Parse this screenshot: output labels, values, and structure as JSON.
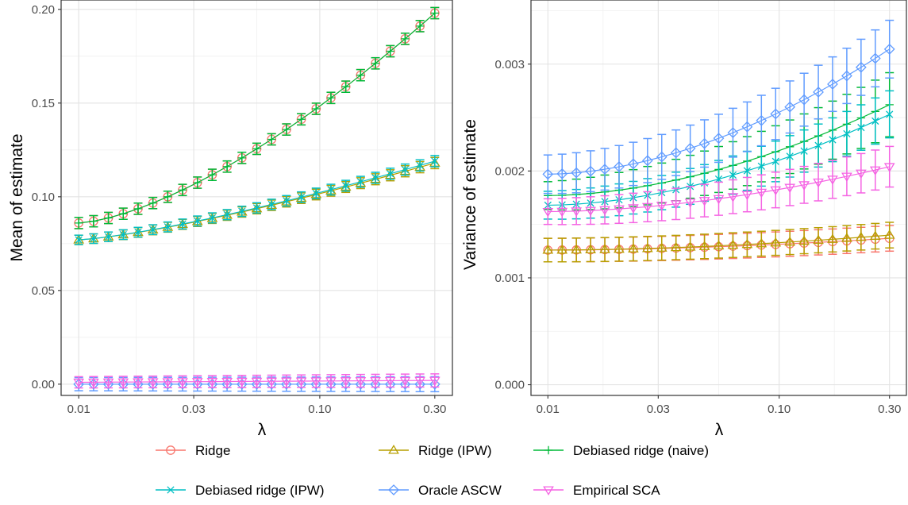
{
  "colors": {
    "ridge": "#F8766D",
    "ridge_ipw": "#B79F00",
    "debiased_naive": "#00BA38",
    "debiased_ipw": "#00BFC4",
    "oracle_ascw": "#619CFF",
    "empirical_sca": "#F564E3"
  },
  "legend": [
    {
      "label": "Ridge",
      "color": "#F8766D",
      "shape": "circle"
    },
    {
      "label": "Ridge (IPW)",
      "color": "#B79F00",
      "shape": "triangle"
    },
    {
      "label": "Debiased ridge (naive)",
      "color": "#00BA38",
      "shape": "plus"
    },
    {
      "label": "Debiased ridge (IPW)",
      "color": "#00BFC4",
      "shape": "cross"
    },
    {
      "label": "Oracle ASCW",
      "color": "#619CFF",
      "shape": "diamond"
    },
    {
      "label": "Empirical SCA",
      "color": "#F564E3",
      "shape": "triangle-down"
    }
  ],
  "chart_data": [
    {
      "type": "line",
      "title": "",
      "xlabel": "λ",
      "ylabel": "Mean of estimate",
      "x_scale": "log",
      "x_range": [
        0.01,
        0.3
      ],
      "x_ticks": [
        0.01,
        0.03,
        0.1,
        0.3
      ],
      "x_tick_labels": [
        "0.01",
        "0.03",
        "0.10",
        "0.30"
      ],
      "y_ticks": [
        0.0,
        0.05,
        0.1,
        0.15,
        0.2
      ],
      "y_tick_labels": [
        "0.00",
        "0.05",
        "0.10",
        "0.15",
        "0.20"
      ],
      "ylim": [
        -0.006,
        0.205
      ],
      "grid": true,
      "series": [
        {
          "name": "Ridge",
          "start": 0.086,
          "end": 0.198,
          "curve": 1.5,
          "err_start": 0.003,
          "err_end": 0.003
        },
        {
          "name": "Ridge (IPW)",
          "start": 0.077,
          "end": 0.118,
          "curve": 1.3,
          "err_start": 0.0025,
          "err_end": 0.003
        },
        {
          "name": "Debiased ridge (naive)",
          "start": 0.086,
          "end": 0.198,
          "curve": 1.5,
          "err_start": 0.003,
          "err_end": 0.003
        },
        {
          "name": "Debiased ridge (IPW)",
          "start": 0.077,
          "end": 0.119,
          "curve": 1.3,
          "err_start": 0.0025,
          "err_end": 0.003
        },
        {
          "name": "Oracle ASCW",
          "start": 0.0,
          "end": 0.0,
          "curve": 1,
          "err_start": 0.0035,
          "err_end": 0.004
        },
        {
          "name": "Empirical SCA",
          "start": 0.001,
          "end": 0.002,
          "curve": 1,
          "err_start": 0.003,
          "err_end": 0.0035
        }
      ]
    },
    {
      "type": "line",
      "title": "",
      "xlabel": "λ",
      "ylabel": "Variance of estimate",
      "x_scale": "log",
      "x_range": [
        0.01,
        0.3
      ],
      "x_ticks": [
        0.01,
        0.03,
        0.1,
        0.3
      ],
      "x_tick_labels": [
        "0.01",
        "0.03",
        "0.10",
        "0.30"
      ],
      "y_ticks": [
        0.0,
        0.001,
        0.002,
        0.003
      ],
      "y_tick_labels": [
        "0.000",
        "0.001",
        "0.002",
        "0.003"
      ],
      "ylim": [
        -0.0001,
        0.0036
      ],
      "grid": true,
      "series": [
        {
          "name": "Ridge",
          "start": 0.00126,
          "end": 0.00137,
          "curve": 1.8,
          "err_start": 0.00011,
          "err_end": 0.00012
        },
        {
          "name": "Ridge (IPW)",
          "start": 0.00126,
          "end": 0.0014,
          "curve": 1.8,
          "err_start": 0.00011,
          "err_end": 0.00012
        },
        {
          "name": "Debiased ridge (naive)",
          "start": 0.00177,
          "end": 0.00262,
          "curve": 1.8,
          "err_start": 0.00013,
          "err_end": 0.0003
        },
        {
          "name": "Debiased ridge (IPW)",
          "start": 0.00168,
          "end": 0.00253,
          "curve": 1.8,
          "err_start": 0.00013,
          "err_end": 0.00022
        },
        {
          "name": "Oracle ASCW",
          "start": 0.00197,
          "end": 0.00314,
          "curve": 1.8,
          "err_start": 0.00018,
          "err_end": 0.00027
        },
        {
          "name": "Empirical SCA",
          "start": 0.00162,
          "end": 0.00204,
          "curve": 1.8,
          "err_start": 0.00012,
          "err_end": 0.00019
        }
      ]
    }
  ]
}
